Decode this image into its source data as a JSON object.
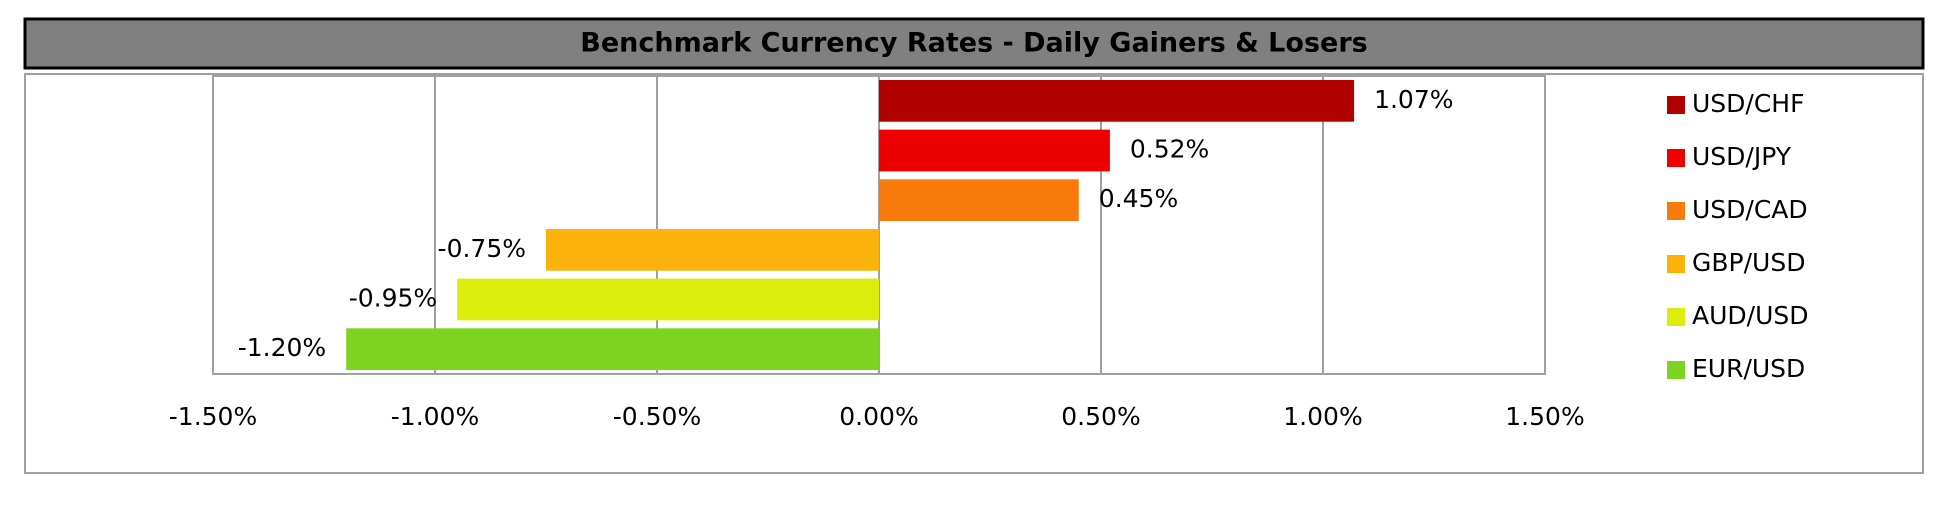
{
  "chart_data": {
    "type": "bar",
    "orientation": "horizontal",
    "title": "Benchmark Currency Rates - Daily Gainers & Losers",
    "categories": [
      "USD/CHF",
      "USD/JPY",
      "USD/CAD",
      "GBP/USD",
      "AUD/USD",
      "EUR/USD"
    ],
    "values": [
      1.07,
      0.52,
      0.45,
      -0.75,
      -0.95,
      -1.2
    ],
    "value_labels": [
      "1.07%",
      "0.52%",
      "0.45%",
      "-0.75%",
      "-0.95%",
      "-1.20%"
    ],
    "colors": [
      "#b00000",
      "#ee0000",
      "#f97b0c",
      "#fbb20a",
      "#dcec0c",
      "#7ed321"
    ],
    "xlim": [
      -1.5,
      1.5
    ],
    "xticks": [
      {
        "value": -1.5,
        "label": "-1.50%"
      },
      {
        "value": -1.0,
        "label": "-1.00%"
      },
      {
        "value": -0.5,
        "label": "-0.50%"
      },
      {
        "value": 0,
        "label": "0.00%"
      },
      {
        "value": 0.5,
        "label": "0.50%"
      },
      {
        "value": 1.0,
        "label": "1.00%"
      },
      {
        "value": 1.5,
        "label": "1.50%"
      }
    ],
    "grid": true,
    "legend": "right"
  }
}
